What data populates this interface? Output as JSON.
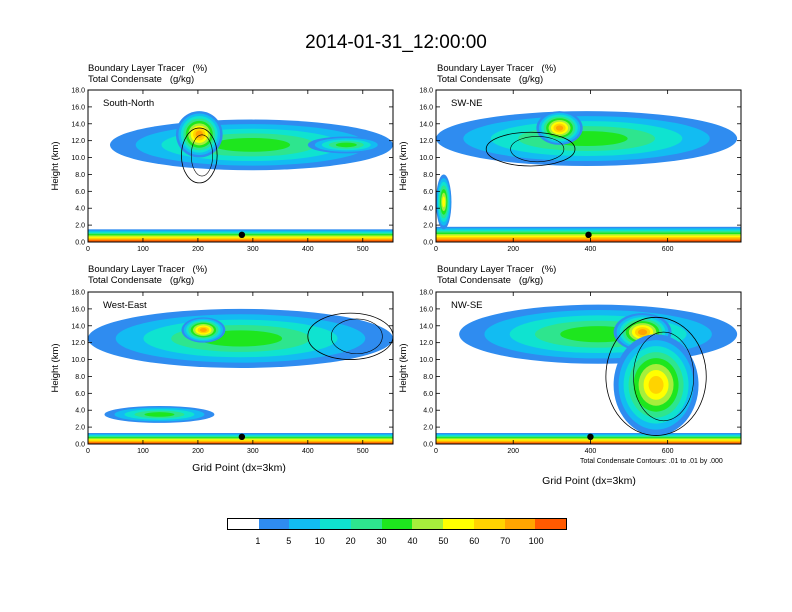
{
  "title": "2014-01-31_12:00:00",
  "colors": {
    "levels": [
      "#ffffff",
      "#2f8cf0",
      "#12bcf2",
      "#0fe3d0",
      "#2ee58e",
      "#1ee61e",
      "#a6ee3c",
      "#ffff00",
      "#ffd300",
      "#ffa500",
      "#ff5a00",
      "#f50f0f"
    ],
    "contour": "#000000",
    "marker": "#000000"
  },
  "colorbar": {
    "labels": [
      "1",
      "5",
      "10",
      "20",
      "30",
      "40",
      "50",
      "60",
      "70",
      "100"
    ]
  },
  "panels": [
    {
      "field1": "Boundary Layer Tracer   (%)",
      "field2": "Total Condensate   (g/kg)",
      "section": "South-North",
      "ylabel": "Height (km)",
      "xlabel": "",
      "note": "",
      "xticks": [
        "0",
        "100",
        "200",
        "300",
        "400",
        "500"
      ]
    },
    {
      "field1": "Boundary Layer Tracer   (%)",
      "field2": "Total Condensate   (g/kg)",
      "section": "SW-NE",
      "ylabel": "Height (km)",
      "xlabel": "",
      "note": "",
      "xticks": [
        "0",
        "200",
        "400",
        "600"
      ]
    },
    {
      "field1": "Boundary Layer Tracer   (%)",
      "field2": "Total Condensate   (g/kg)",
      "section": "West-East",
      "ylabel": "Height (km)",
      "xlabel": "Grid Point (dx=3km)",
      "note": "",
      "xticks": [
        "0",
        "100",
        "200",
        "300",
        "400",
        "500"
      ]
    },
    {
      "field1": "Boundary Layer Tracer   (%)",
      "field2": "Total Condensate   (g/kg)",
      "section": "NW-SE",
      "ylabel": "Height (km)",
      "xlabel": "Grid Point (dx=3km)",
      "note": "Total Condensate Contours: .01 to .01 by .000",
      "xticks": [
        "0",
        "200",
        "400",
        "600"
      ]
    }
  ],
  "chart_data": [
    {
      "type": "heatmap",
      "title": "Boundary Layer Tracer (%) / Total Condensate (g/kg) — South-North",
      "section": "South-North",
      "xlabel": "",
      "ylabel": "Height (km)",
      "xlim": [
        0,
        555
      ],
      "ylim": [
        0,
        18
      ],
      "x_ticks": [
        0,
        100,
        200,
        300,
        400,
        500
      ],
      "y_ticks": [
        0.0,
        2.0,
        4.0,
        6.0,
        8.0,
        10.0,
        12.0,
        14.0,
        16.0,
        18.0
      ],
      "color_levels": [
        1,
        5,
        10,
        20,
        30,
        40,
        50,
        60,
        70,
        100
      ],
      "surface_marker_x": 280,
      "features": [
        {
          "kind": "surface-layer",
          "x": [
            0,
            555
          ],
          "z": [
            0.0,
            1.5
          ],
          "max_level": 100
        },
        {
          "kind": "upper-layer",
          "x": [
            40,
            555
          ],
          "z": [
            8.5,
            14.5
          ],
          "max_level": 30
        },
        {
          "kind": "core",
          "x": [
            160,
            245
          ],
          "z": [
            10.0,
            15.5
          ],
          "max_level": 70
        },
        {
          "kind": "secondary-core",
          "x": [
            400,
            540
          ],
          "z": [
            10.5,
            12.5
          ],
          "max_level": 30
        },
        {
          "kind": "contour-outline",
          "x": [
            170,
            235
          ],
          "z": [
            7.0,
            13.5
          ],
          "level": 0.01
        }
      ]
    },
    {
      "type": "heatmap",
      "title": "Boundary Layer Tracer (%) / Total Condensate (g/kg) — SW-NE",
      "section": "SW-NE",
      "xlabel": "",
      "ylabel": "Height (km)",
      "xlim": [
        0,
        790
      ],
      "ylim": [
        0,
        18
      ],
      "x_ticks": [
        0,
        200,
        400,
        600
      ],
      "y_ticks": [
        0.0,
        2.0,
        4.0,
        6.0,
        8.0,
        10.0,
        12.0,
        14.0,
        16.0,
        18.0
      ],
      "color_levels": [
        1,
        5,
        10,
        20,
        30,
        40,
        50,
        60,
        70,
        100
      ],
      "surface_marker_x": 395,
      "features": [
        {
          "kind": "surface-layer",
          "x": [
            0,
            790
          ],
          "z": [
            0.0,
            1.8
          ],
          "max_level": 100
        },
        {
          "kind": "upper-layer",
          "x": [
            0,
            780
          ],
          "z": [
            9.0,
            15.5
          ],
          "max_level": 30
        },
        {
          "kind": "core",
          "x": [
            260,
            380
          ],
          "z": [
            11.5,
            15.5
          ],
          "max_level": 70
        },
        {
          "kind": "left-column",
          "x": [
            0,
            40
          ],
          "z": [
            1.5,
            8.0
          ],
          "max_level": 50
        },
        {
          "kind": "contour-outline",
          "x": [
            130,
            360
          ],
          "z": [
            9.0,
            13.0
          ],
          "level": 0.01
        }
      ]
    },
    {
      "type": "heatmap",
      "title": "Boundary Layer Tracer (%) / Total Condensate (g/kg) — West-East",
      "section": "West-East",
      "xlabel": "Grid Point (dx=3km)",
      "ylabel": "Height (km)",
      "xlim": [
        0,
        555
      ],
      "ylim": [
        0,
        18
      ],
      "x_ticks": [
        0,
        100,
        200,
        300,
        400,
        500
      ],
      "y_ticks": [
        0.0,
        2.0,
        4.0,
        6.0,
        8.0,
        10.0,
        12.0,
        14.0,
        16.0,
        18.0
      ],
      "color_levels": [
        1,
        5,
        10,
        20,
        30,
        40,
        50,
        60,
        70,
        100
      ],
      "surface_marker_x": 280,
      "features": [
        {
          "kind": "surface-layer",
          "x": [
            0,
            555
          ],
          "z": [
            0.0,
            1.3
          ],
          "max_level": 100
        },
        {
          "kind": "upper-layer",
          "x": [
            0,
            555
          ],
          "z": [
            9.0,
            16.0
          ],
          "max_level": 30
        },
        {
          "kind": "core",
          "x": [
            170,
            250
          ],
          "z": [
            12.0,
            15.0
          ],
          "max_level": 70
        },
        {
          "kind": "lower-band",
          "x": [
            30,
            230
          ],
          "z": [
            2.5,
            4.5
          ],
          "max_level": 30
        },
        {
          "kind": "contour-outline",
          "x": [
            400,
            555
          ],
          "z": [
            10.0,
            15.5
          ],
          "level": 0.01
        }
      ]
    },
    {
      "type": "heatmap",
      "title": "Boundary Layer Tracer (%) / Total Condensate (g/kg) — NW-SE",
      "section": "NW-SE",
      "xlabel": "Grid Point (dx=3km)",
      "ylabel": "Height (km)",
      "xlim": [
        0,
        790
      ],
      "ylim": [
        0,
        18
      ],
      "x_ticks": [
        0,
        200,
        400,
        600
      ],
      "y_ticks": [
        0.0,
        2.0,
        4.0,
        6.0,
        8.0,
        10.0,
        12.0,
        14.0,
        16.0,
        18.0
      ],
      "color_levels": [
        1,
        5,
        10,
        20,
        30,
        40,
        50,
        60,
        70,
        100
      ],
      "surface_marker_x": 400,
      "features": [
        {
          "kind": "surface-layer",
          "x": [
            0,
            790
          ],
          "z": [
            0.0,
            1.3
          ],
          "max_level": 100
        },
        {
          "kind": "upper-layer",
          "x": [
            60,
            780
          ],
          "z": [
            9.5,
            16.5
          ],
          "max_level": 30
        },
        {
          "kind": "core",
          "x": [
            460,
            610
          ],
          "z": [
            11.0,
            15.5
          ],
          "max_level": 70
        },
        {
          "kind": "slanted-column",
          "x": [
            460,
            680
          ],
          "z": [
            1.0,
            13.0
          ],
          "max_level": 60
        },
        {
          "kind": "contour-outline",
          "x": [
            440,
            700
          ],
          "z": [
            1.0,
            15.0
          ],
          "level": 0.01
        }
      ],
      "contour_note": "Total Condensate Contours: .01 to .01 by .000"
    }
  ]
}
